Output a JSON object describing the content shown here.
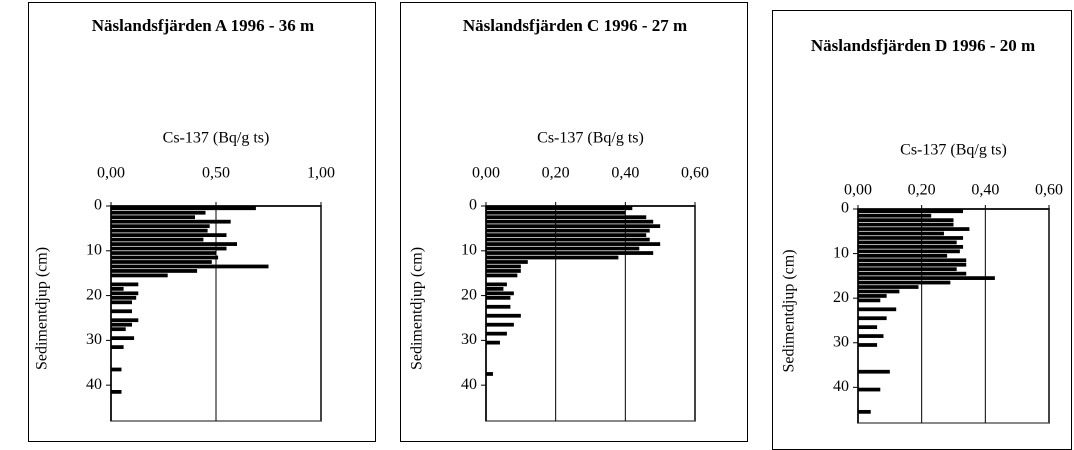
{
  "chart_data": [
    {
      "type": "bar",
      "orientation": "horizontal",
      "title": "Näslandsfjärden A 1996 - 36 m",
      "x_label": "Cs-137 (Bq/g ts)",
      "y_label": "Sedimentdjup (cm)",
      "depths": [
        0.5,
        1.5,
        2.5,
        3.5,
        4.5,
        5.5,
        6.5,
        7.5,
        8.5,
        9.5,
        10.5,
        11.5,
        12.5,
        13.5,
        14.5,
        15.5,
        17.5,
        18.5,
        19.5,
        20.5,
        21.5,
        23.5,
        25.5,
        26.5,
        27.5,
        29.5,
        31.5,
        36.5,
        41.5
      ],
      "values": [
        0.69,
        0.45,
        0.4,
        0.57,
        0.47,
        0.46,
        0.55,
        0.44,
        0.6,
        0.55,
        0.5,
        0.51,
        0.48,
        0.75,
        0.41,
        0.27,
        0.13,
        0.06,
        0.13,
        0.12,
        0.1,
        0.1,
        0.13,
        0.1,
        0.07,
        0.11,
        0.06,
        0.05,
        0.05
      ],
      "color": "#000000",
      "xlim": [
        0,
        1
      ],
      "xticks": [
        {
          "value": 0,
          "label": "0,00"
        },
        {
          "value": 0.5,
          "label": "0,50"
        },
        {
          "value": 1,
          "label": "1,00"
        }
      ],
      "ylim": [
        0,
        48
      ],
      "yticks": [
        0,
        10,
        20,
        30,
        40
      ],
      "grid": true
    },
    {
      "type": "bar",
      "orientation": "horizontal",
      "title": "Näslandsfjärden C 1996 - 27 m",
      "x_label": "Cs-137 (Bq/g ts)",
      "y_label": "Sedimentdjup (cm)",
      "depths": [
        0.5,
        1.5,
        2.5,
        3.5,
        4.5,
        5.5,
        6.5,
        7.5,
        8.5,
        9.5,
        10.5,
        11.5,
        12.5,
        13.5,
        14.5,
        15.5,
        17.5,
        18.5,
        19.5,
        20.5,
        22.5,
        24.5,
        26.5,
        28.5,
        30.5,
        37.5
      ],
      "values": [
        0.42,
        0.4,
        0.46,
        0.48,
        0.5,
        0.47,
        0.46,
        0.47,
        0.5,
        0.44,
        0.48,
        0.38,
        0.12,
        0.1,
        0.1,
        0.09,
        0.06,
        0.05,
        0.08,
        0.07,
        0.07,
        0.1,
        0.08,
        0.06,
        0.04,
        0.02
      ],
      "color": "#000000",
      "xlim": [
        0,
        0.6
      ],
      "xticks": [
        {
          "value": 0,
          "label": "0,00"
        },
        {
          "value": 0.2,
          "label": "0,20"
        },
        {
          "value": 0.4,
          "label": "0,40"
        },
        {
          "value": 0.6,
          "label": "0,60"
        }
      ],
      "ylim": [
        0,
        48
      ],
      "yticks": [
        0,
        10,
        20,
        30,
        40
      ],
      "grid": true
    },
    {
      "type": "bar",
      "orientation": "horizontal",
      "title": "Näslandsfjärden D 1996 - 20 m",
      "x_label": "Cs-137 (Bq/g ts)",
      "y_label": "Sedimentdjup (cm)",
      "depths": [
        0.5,
        1.5,
        2.5,
        3.5,
        4.5,
        5.5,
        6.5,
        7.5,
        8.5,
        9.5,
        10.5,
        11.5,
        12.5,
        13.5,
        14.5,
        15.5,
        16.5,
        17.5,
        18.5,
        19.5,
        20.5,
        22.5,
        24.5,
        26.5,
        28.5,
        30.5,
        36.5,
        40.5,
        45.5
      ],
      "values": [
        0.33,
        0.23,
        0.3,
        0.3,
        0.35,
        0.27,
        0.33,
        0.31,
        0.33,
        0.32,
        0.28,
        0.34,
        0.34,
        0.31,
        0.34,
        0.43,
        0.29,
        0.19,
        0.13,
        0.09,
        0.07,
        0.12,
        0.09,
        0.06,
        0.08,
        0.06,
        0.1,
        0.07,
        0.04
      ],
      "color": "#000000",
      "xlim": [
        0,
        0.6
      ],
      "xticks": [
        {
          "value": 0,
          "label": "0,00"
        },
        {
          "value": 0.2,
          "label": "0,20"
        },
        {
          "value": 0.4,
          "label": "0,40"
        },
        {
          "value": 0.6,
          "label": "0,60"
        }
      ],
      "ylim": [
        0,
        48
      ],
      "yticks": [
        0,
        10,
        20,
        30,
        40
      ],
      "grid": true
    }
  ]
}
